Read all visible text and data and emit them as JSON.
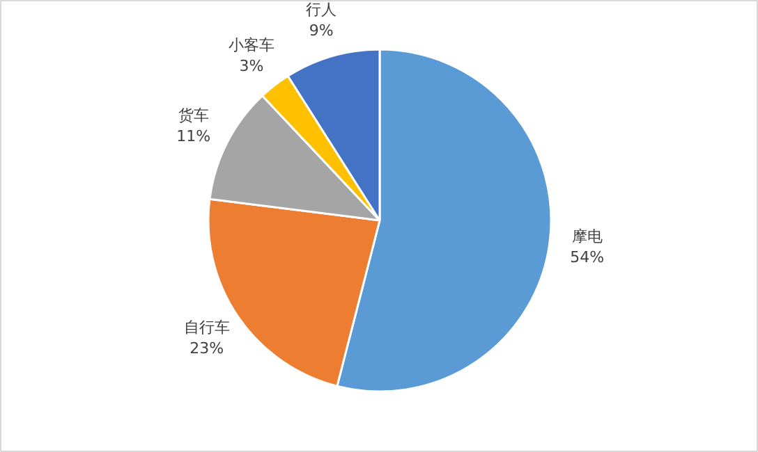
{
  "chart_data": {
    "type": "pie",
    "categories": [
      "摩电",
      "自行车",
      "货车",
      "小客车",
      "行人"
    ],
    "values": [
      54,
      23,
      11,
      3,
      9
    ],
    "colors": [
      "#5b9bd5",
      "#ed7d31",
      "#a5a5a5",
      "#ffc000",
      "#4472c4"
    ],
    "value_labels": [
      "54%",
      "23%",
      "11%",
      "3%",
      "9%"
    ]
  }
}
